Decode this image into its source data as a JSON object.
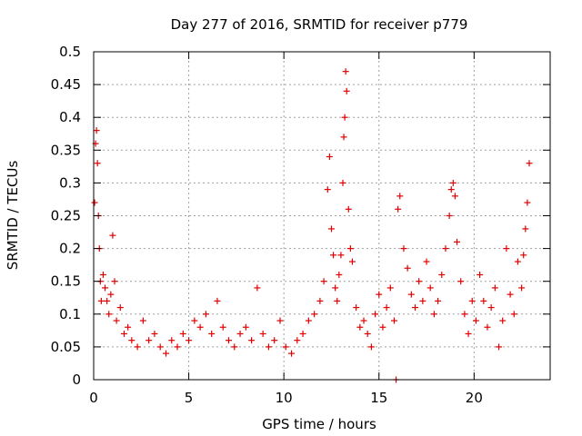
{
  "chart_data": {
    "type": "scatter",
    "title": "Day 277 of 2016, SRMTID for receiver p779",
    "xlabel": "GPS time / hours",
    "ylabel": "SRMTID / TECUs",
    "xlim": [
      0,
      24
    ],
    "ylim": [
      0,
      0.5
    ],
    "xticks": [
      0,
      5,
      10,
      15,
      20
    ],
    "xtick_labels": [
      "0",
      "5",
      "10",
      "15",
      "20"
    ],
    "yticks": [
      0,
      0.05,
      0.1,
      0.15,
      0.2,
      0.25,
      0.3,
      0.35,
      0.4,
      0.45,
      0.5
    ],
    "ytick_labels": [
      "0",
      "0.05",
      "0.1",
      "0.15",
      "0.2",
      "0.25",
      "0.3",
      "0.35",
      "0.4",
      "0.45",
      "0.5"
    ],
    "grid": true,
    "marker": "+",
    "marker_color": "#e00000",
    "series": [
      {
        "name": "SRMTID",
        "x": [
          0.05,
          0.1,
          0.15,
          0.2,
          0.25,
          0.3,
          0.35,
          0.4,
          0.5,
          0.6,
          0.7,
          0.8,
          0.9,
          1.0,
          1.1,
          1.2,
          1.4,
          1.6,
          1.8,
          2.0,
          2.3,
          2.6,
          2.9,
          3.2,
          3.5,
          3.8,
          4.1,
          4.4,
          4.7,
          5.0,
          5.3,
          5.6,
          5.9,
          6.2,
          6.5,
          6.8,
          7.1,
          7.4,
          7.7,
          8.0,
          8.3,
          8.6,
          8.9,
          9.2,
          9.5,
          9.8,
          10.1,
          10.4,
          10.7,
          11.0,
          11.3,
          11.6,
          11.9,
          12.1,
          12.3,
          12.4,
          12.5,
          12.6,
          12.7,
          12.8,
          12.9,
          13.0,
          13.1,
          13.15,
          13.2,
          13.25,
          13.3,
          13.4,
          13.5,
          13.6,
          13.8,
          14.0,
          14.2,
          14.4,
          14.6,
          14.8,
          15.0,
          15.2,
          15.4,
          15.6,
          15.8,
          15.9,
          16.0,
          16.1,
          16.3,
          16.5,
          16.7,
          16.9,
          17.1,
          17.3,
          17.5,
          17.7,
          17.9,
          18.1,
          18.3,
          18.5,
          18.7,
          18.8,
          18.9,
          19.0,
          19.1,
          19.3,
          19.5,
          19.7,
          19.9,
          20.1,
          20.3,
          20.5,
          20.7,
          20.9,
          21.1,
          21.3,
          21.5,
          21.7,
          21.9,
          22.1,
          22.3,
          22.5,
          22.6,
          22.7,
          22.8,
          22.9
        ],
        "y": [
          0.27,
          0.36,
          0.38,
          0.33,
          0.25,
          0.2,
          0.15,
          0.12,
          0.16,
          0.14,
          0.12,
          0.1,
          0.13,
          0.22,
          0.15,
          0.09,
          0.11,
          0.07,
          0.08,
          0.06,
          0.05,
          0.09,
          0.06,
          0.07,
          0.05,
          0.04,
          0.06,
          0.05,
          0.07,
          0.06,
          0.09,
          0.08,
          0.1,
          0.07,
          0.12,
          0.08,
          0.06,
          0.05,
          0.07,
          0.08,
          0.06,
          0.14,
          0.07,
          0.05,
          0.06,
          0.09,
          0.05,
          0.04,
          0.06,
          0.07,
          0.09,
          0.1,
          0.12,
          0.15,
          0.29,
          0.34,
          0.23,
          0.19,
          0.14,
          0.12,
          0.16,
          0.19,
          0.3,
          0.37,
          0.4,
          0.47,
          0.44,
          0.26,
          0.2,
          0.18,
          0.11,
          0.08,
          0.09,
          0.07,
          0.05,
          0.1,
          0.13,
          0.08,
          0.11,
          0.14,
          0.09,
          0.0,
          0.26,
          0.28,
          0.2,
          0.17,
          0.13,
          0.11,
          0.15,
          0.12,
          0.18,
          0.14,
          0.1,
          0.12,
          0.16,
          0.2,
          0.25,
          0.29,
          0.3,
          0.28,
          0.21,
          0.15,
          0.1,
          0.07,
          0.12,
          0.09,
          0.16,
          0.12,
          0.08,
          0.11,
          0.14,
          0.05,
          0.09,
          0.2,
          0.13,
          0.1,
          0.18,
          0.14,
          0.19,
          0.23,
          0.27,
          0.33
        ]
      }
    ]
  }
}
